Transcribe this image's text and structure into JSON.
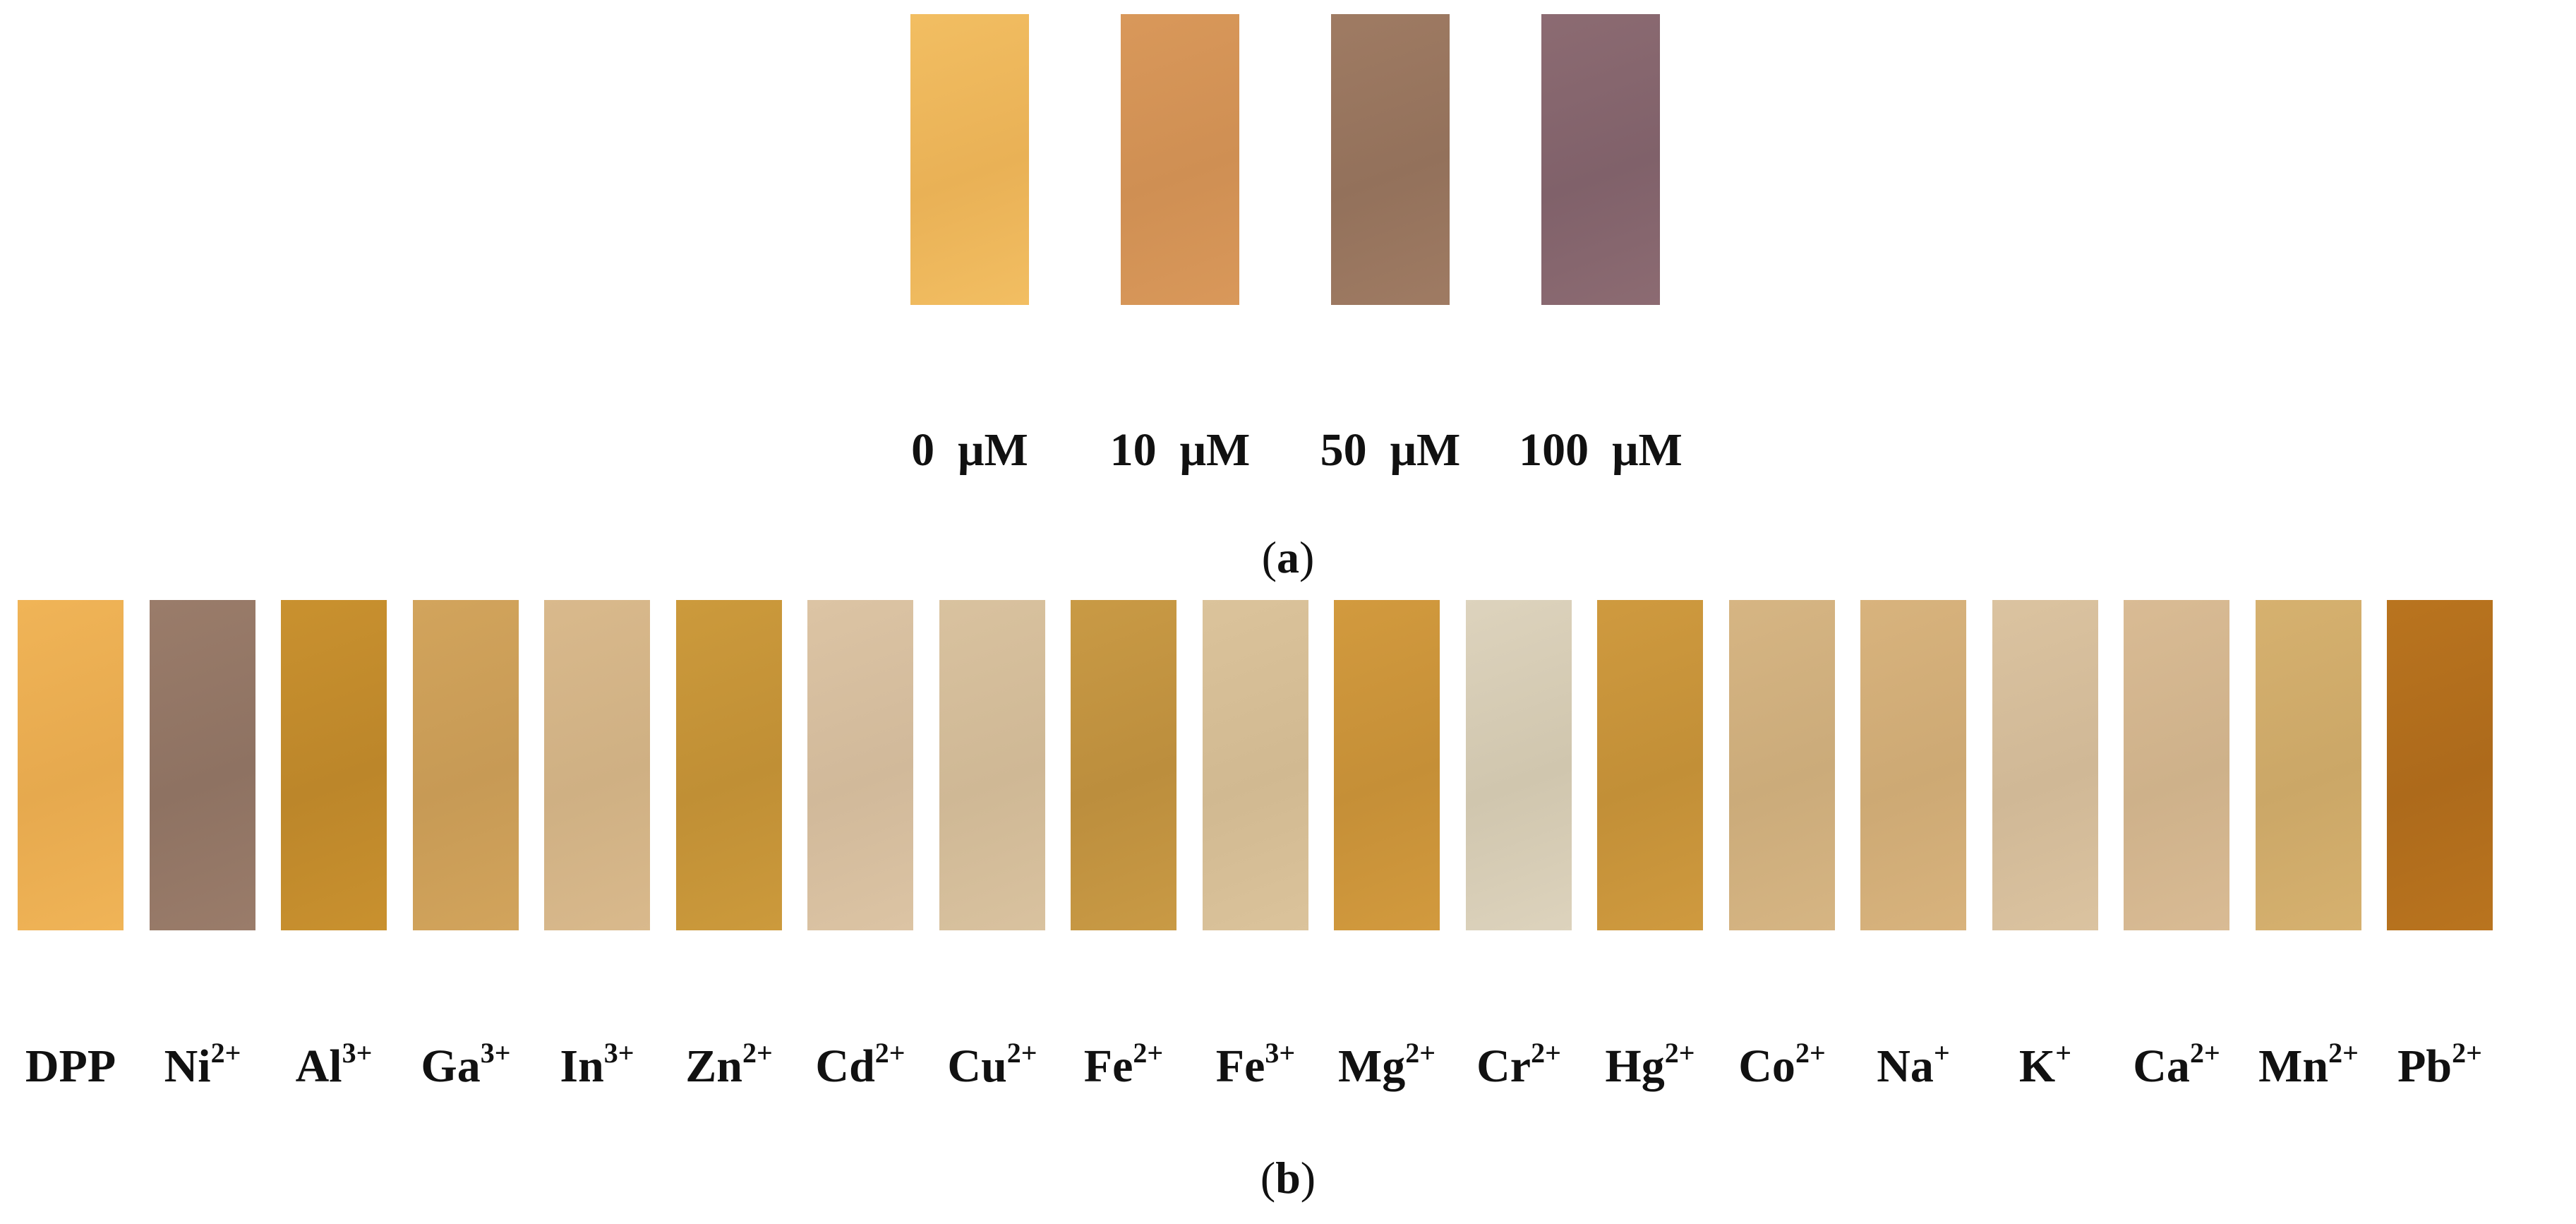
{
  "panel_a": {
    "label_open": "(",
    "label_letter": "a",
    "label_close": ")",
    "swatches": [
      {
        "label": "0  μM",
        "color": "#f2be62",
        "color2": "#e9b156"
      },
      {
        "label": "10  μM",
        "color": "#d9985a",
        "color2": "#cf8f53"
      },
      {
        "label": "50  μM",
        "color": "#9f7b63",
        "color2": "#93715b"
      },
      {
        "label": "100  μM",
        "color": "#8c6b72",
        "color2": "#80616a"
      }
    ]
  },
  "panel_b": {
    "label_open": "(",
    "label_letter": "b",
    "label_close": ")",
    "swatches": [
      {
        "base": "DPP",
        "sup": "",
        "color": "#f0b457",
        "color2": "#e6a94e"
      },
      {
        "base": "Ni",
        "sup": "2+",
        "color": "#9a7c6a",
        "color2": "#8e7262"
      },
      {
        "base": "Al",
        "sup": "3+",
        "color": "#c9912f",
        "color2": "#bc862a"
      },
      {
        "base": "Ga",
        "sup": "3+",
        "color": "#d2a45c",
        "color2": "#c79a55"
      },
      {
        "base": "In",
        "sup": "3+",
        "color": "#d9b98c",
        "color2": "#cfb083"
      },
      {
        "base": "Zn",
        "sup": "2+",
        "color": "#cc9a3c",
        "color2": "#c08f35"
      },
      {
        "base": "Cd",
        "sup": "2+",
        "color": "#dcc4a4",
        "color2": "#d1b99a"
      },
      {
        "base": "Cu",
        "sup": "2+",
        "color": "#d9c29f",
        "color2": "#cfb895"
      },
      {
        "base": "Fe",
        "sup": "2+",
        "color": "#c99a45",
        "color2": "#bc8e3d"
      },
      {
        "base": "Fe",
        "sup": "3+",
        "color": "#dbc39b",
        "color2": "#d1b991"
      },
      {
        "base": "Mg",
        "sup": "2+",
        "color": "#d29a3e",
        "color2": "#c58f37"
      },
      {
        "base": "Cr",
        "sup": "2+",
        "color": "#ddd3bd",
        "color2": "#d0c6ae"
      },
      {
        "base": "Hg",
        "sup": "2+",
        "color": "#cf9a3f",
        "color2": "#c28f37"
      },
      {
        "base": "Co",
        "sup": "2+",
        "color": "#d6b583",
        "color2": "#cbab7a"
      },
      {
        "base": "Na",
        "sup": "+",
        "color": "#d8b37d",
        "color2": "#cda974"
      },
      {
        "base": "K",
        "sup": "+",
        "color": "#dbc3a0",
        "color2": "#d0b896"
      },
      {
        "base": "Ca",
        "sup": "2+",
        "color": "#d9bb94",
        "color2": "#ceb18a"
      },
      {
        "base": "Mn",
        "sup": "2+",
        "color": "#d6b16f",
        "color2": "#cba767"
      },
      {
        "base": "Pb",
        "sup": "2+",
        "color": "#b9741f",
        "color2": "#ad6a1b"
      }
    ]
  }
}
